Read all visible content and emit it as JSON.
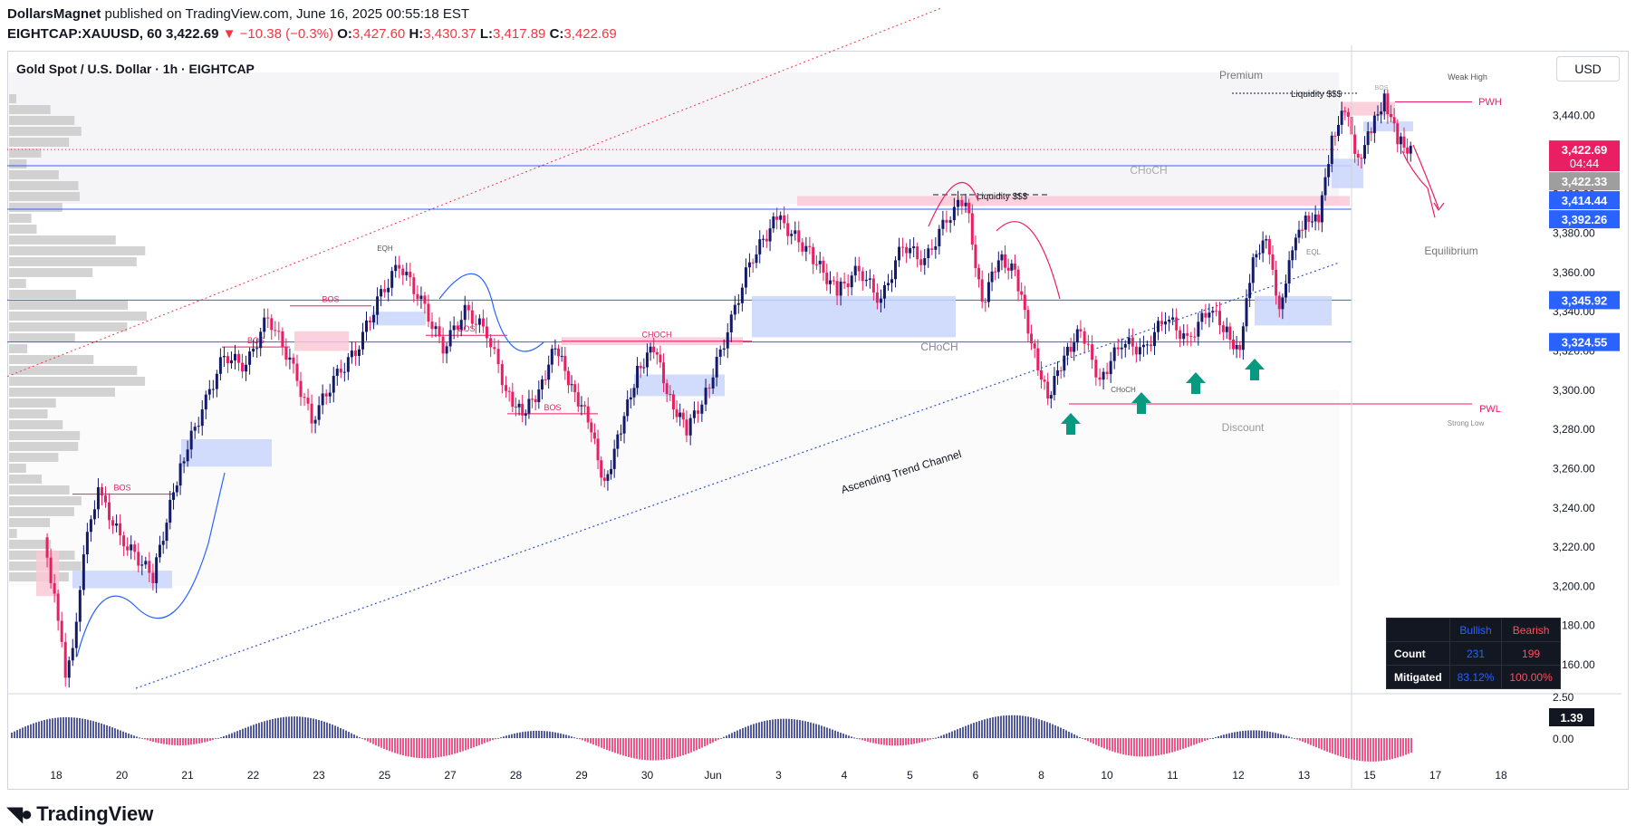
{
  "header": {
    "author": "DollarsMagnet",
    "published": " published on TradingView.com, June 16, 2025 00:55:18 EST",
    "symbol": "EIGHTCAP:XAUUSD, 60",
    "last": "3,422.69",
    "change": "−10.38 (−0.3%)",
    "open_label": "O:",
    "open": "3,427.60",
    "high_label": "H:",
    "high": "3,430.37",
    "low_label": "L:",
    "low": "3,417.89",
    "close_label": "C:",
    "close": "3,422.69"
  },
  "chart_title": "Gold Spot / U.S. Dollar · 1h · EIGHTCAP",
  "currency_button": "USD",
  "brand": "TradingView",
  "colors": {
    "bull": "#131a6b",
    "bear": "#e91e63",
    "accent_red": "#e91e63",
    "blue": "#2962ff",
    "teal": "#089981"
  },
  "chart_data": {
    "type": "line",
    "title": "Gold Spot / U.S. Dollar · 1h · EIGHTCAP",
    "x_ticks": [
      "18",
      "20",
      "21",
      "22",
      "23",
      "25",
      "27",
      "28",
      "29",
      "30",
      "Jun",
      "3",
      "4",
      "5",
      "6",
      "8",
      "10",
      "11",
      "12",
      "13",
      "15",
      "17",
      "18"
    ],
    "y_ticks": [
      "3,440.00",
      "3,420.00",
      "3,400.00",
      "3,380.00",
      "3,360.00",
      "3,340.00",
      "3,320.00",
      "3,300.00",
      "3,280.00",
      "3,260.00",
      "3,240.00",
      "3,220.00",
      "3,200.00",
      "3,180.00",
      "3,160.00"
    ],
    "ylim": [
      3148,
      3462
    ],
    "price_path": [
      [
        "18",
        3225
      ],
      [
        "18",
        3195
      ],
      [
        "18",
        3155
      ],
      [
        "18",
        3180
      ],
      [
        "18",
        3230
      ],
      [
        "18",
        3248
      ],
      [
        "20",
        3225
      ],
      [
        "20",
        3205
      ],
      [
        "21",
        3262
      ],
      [
        "21",
        3290
      ],
      [
        "21",
        3318
      ],
      [
        "22",
        3312
      ],
      [
        "22",
        3338
      ],
      [
        "22",
        3315
      ],
      [
        "23",
        3285
      ],
      [
        "23",
        3305
      ],
      [
        "23",
        3320
      ],
      [
        "25",
        3345
      ],
      [
        "25",
        3365
      ],
      [
        "25",
        3345
      ],
      [
        "27",
        3322
      ],
      [
        "27",
        3340
      ],
      [
        "27",
        3330
      ],
      [
        "28",
        3300
      ],
      [
        "28",
        3287
      ],
      [
        "28",
        3300
      ],
      [
        "28",
        3322
      ],
      [
        "29",
        3302
      ],
      [
        "29",
        3285
      ],
      [
        "29",
        3252
      ],
      [
        "29",
        3280
      ],
      [
        "30",
        3310
      ],
      [
        "30",
        3322
      ],
      [
        "30",
        3295
      ],
      [
        "30",
        3280
      ],
      [
        "Jun",
        3298
      ],
      [
        "Jun",
        3330
      ],
      [
        "Jun",
        3365
      ],
      [
        "3",
        3388
      ],
      [
        "3",
        3370
      ],
      [
        "4",
        3350
      ],
      [
        "4",
        3362
      ],
      [
        "4",
        3345
      ],
      [
        "5",
        3375
      ],
      [
        "5",
        3365
      ],
      [
        "5",
        3388
      ],
      [
        "6",
        3398
      ],
      [
        "6",
        3343
      ],
      [
        "6",
        3368
      ],
      [
        "6",
        3360
      ],
      [
        "8",
        3325
      ],
      [
        "8",
        3295
      ],
      [
        "8",
        3318
      ],
      [
        "8",
        3330
      ],
      [
        "10",
        3305
      ],
      [
        "10",
        3325
      ],
      [
        "10",
        3320
      ],
      [
        "11",
        3338
      ],
      [
        "11",
        3325
      ],
      [
        "11",
        3342
      ],
      [
        "12",
        3330
      ],
      [
        "12",
        3318
      ],
      [
        "12",
        3370
      ],
      [
        "12",
        3375
      ],
      [
        "12",
        3343
      ],
      [
        "13",
        3370
      ],
      [
        "13",
        3390
      ],
      [
        "13",
        3385
      ],
      [
        "13",
        3430
      ],
      [
        "13",
        3442
      ],
      [
        "15",
        3418
      ],
      [
        "15",
        3432
      ],
      [
        "15",
        3450
      ],
      [
        "15",
        3427
      ],
      [
        "15",
        3422.69
      ]
    ],
    "forecast_path": [
      [
        3422,
        3418
      ],
      [
        3425,
        3412
      ],
      [
        3420,
        3407
      ],
      [
        3428,
        3403
      ],
      [
        3395,
        3388
      ]
    ],
    "oscillator": {
      "current": "1.39",
      "ticks": [
        "2.50",
        "0.00"
      ]
    }
  },
  "price_tags": [
    {
      "label": "3,422.69",
      "sub": "04:44",
      "bg": "#e91e63"
    },
    {
      "label": "3,422.33",
      "sub": "",
      "bg": "#9e9e9e"
    },
    {
      "label": "3,414.44",
      "sub": "",
      "bg": "#2962ff"
    },
    {
      "label": "3,392.26",
      "sub": "",
      "bg": "#2962ff"
    },
    {
      "label": "3,345.92",
      "sub": "",
      "bg": "#2962ff"
    },
    {
      "label": "3,324.55",
      "sub": "",
      "bg": "#2962ff"
    }
  ],
  "osc_tag": "1.39",
  "annotations": {
    "premium": "Premium",
    "equilibrium": "Equilibrium",
    "discount": "Discount",
    "choch": "CHoCH",
    "choch_caps": "CHOCH",
    "bos": "BOS",
    "eqh": "EQH",
    "eql": "EQL",
    "liquidity": "Liquidity  $$$",
    "weak_high": "Weak High",
    "strong_low": "Strong Low",
    "pwh": "PWH",
    "pwl": "PWL",
    "trend_channel": "Ascending Trend Channel"
  },
  "stats_table": {
    "head_bull": "Bullish",
    "head_bear": "Bearish",
    "row1_label": "Count",
    "row1_bull": "231",
    "row1_bear": "199",
    "row2_label": "Mitigated",
    "row2_bull": "83.12%",
    "row2_bear": "100.00%"
  }
}
